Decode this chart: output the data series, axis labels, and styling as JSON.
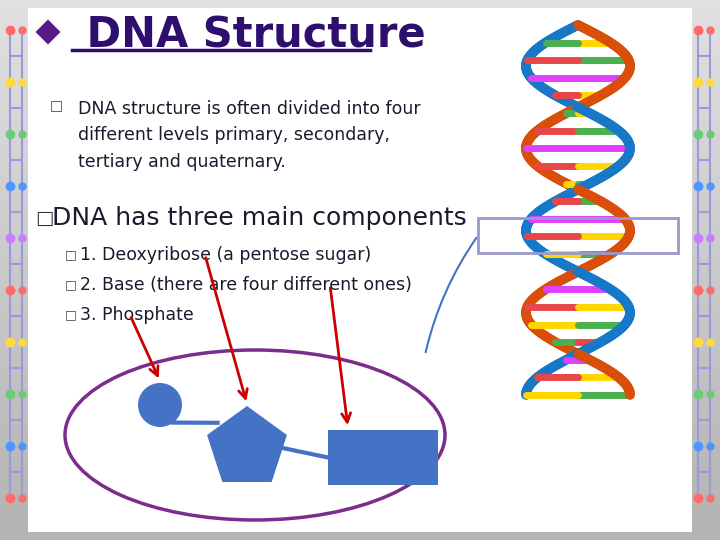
{
  "title": " DNA Structure",
  "title_color": "#2e0f6e",
  "diamond_color": "#5a1a8a",
  "bullet1_text": "DNA structure is often divided into four\ndifferent levels primary, secondary,\ntertiary and quaternary.",
  "bullet2_text": "DNA has three main components",
  "sub1": "1. Deoxyribose (a pentose sugar)",
  "sub2": "2. Base (there are four different ones)",
  "sub3": "3. Phosphate",
  "text_color": "#1a1a2e",
  "body_font_size": 12.5,
  "heading2_font_size": 18,
  "shape_color": "#4472c4",
  "ellipse_color": "#7b2d8b",
  "arrow_color": "#cc0000",
  "connector_color": "#4472c4",
  "left_chain_colors": [
    "#ff6b6b",
    "#ffd93d",
    "#6bcb77",
    "#4d96ff",
    "#c77dff",
    "#ff6b6b",
    "#ffd93d",
    "#6bcb77",
    "#4d96ff",
    "#ff6b6b"
  ],
  "right_chain_colors": [
    "#ff6b6b",
    "#ffd93d",
    "#6bcb77",
    "#4d96ff",
    "#c77dff",
    "#ff6b6b",
    "#ffd93d",
    "#6bcb77",
    "#4d96ff",
    "#ff6b6b"
  ]
}
